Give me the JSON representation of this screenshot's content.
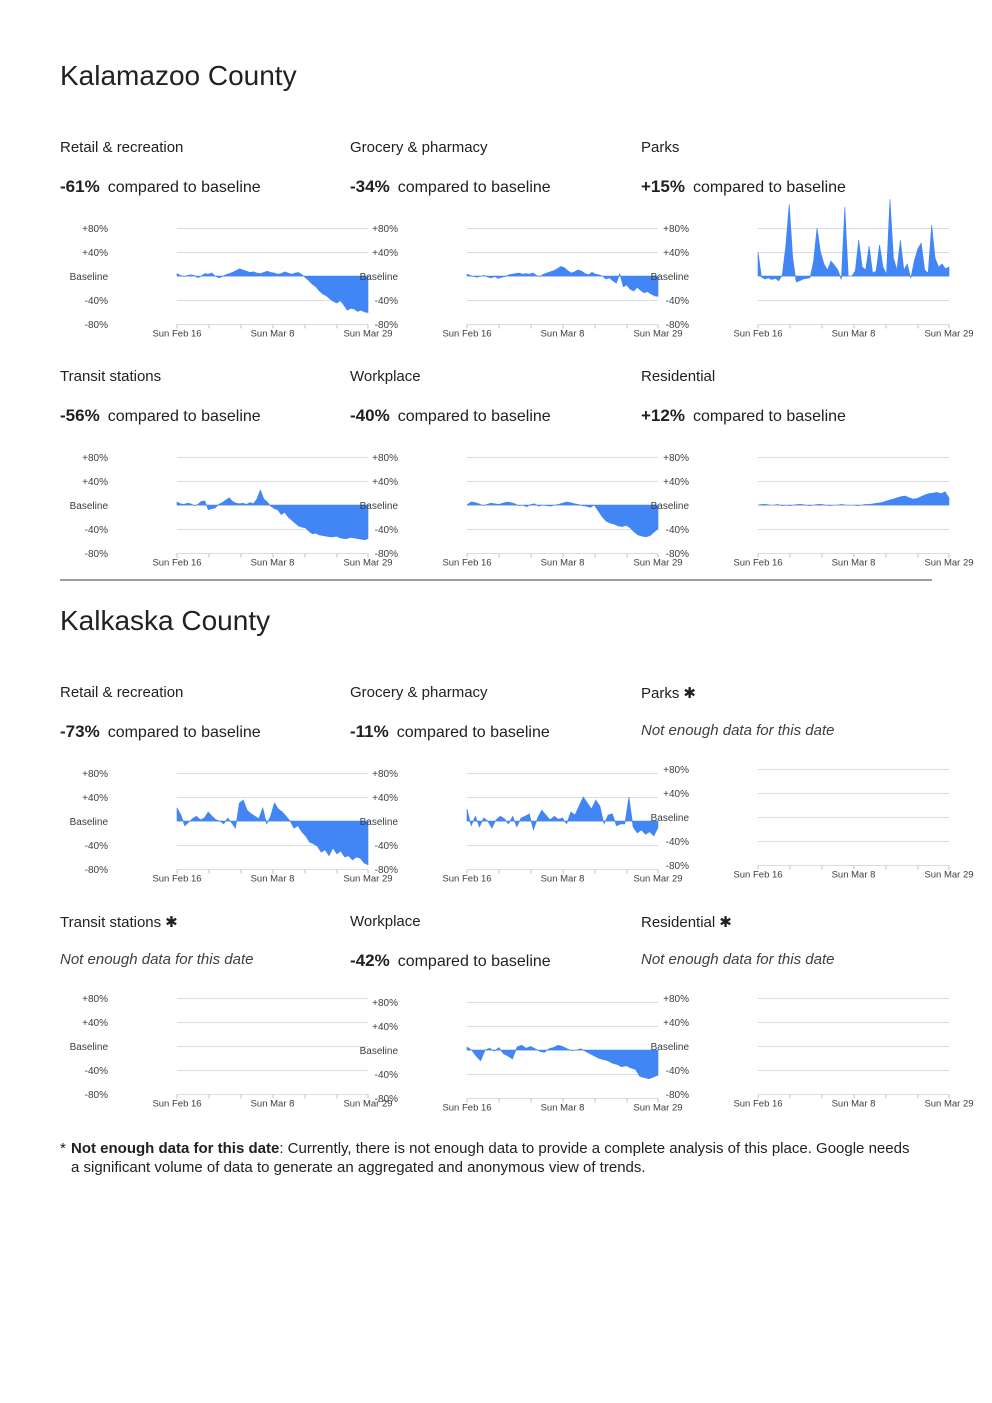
{
  "counties": [
    {
      "name": "Kalamazoo County",
      "panels": [
        {
          "title": "Retail & recreation",
          "headline": "-61%",
          "compare": "compared to baseline",
          "note": "",
          "asterisk": "",
          "values": [
            4,
            1,
            -1,
            1,
            2,
            1,
            -3,
            0,
            4,
            3,
            5,
            0,
            -3,
            -1,
            2,
            4,
            6,
            9,
            12,
            10,
            8,
            6,
            7,
            5,
            4,
            6,
            8,
            6,
            5,
            3,
            4,
            7,
            5,
            3,
            5,
            6,
            2,
            -3,
            -8,
            -14,
            -18,
            -25,
            -30,
            -33,
            -38,
            -42,
            -45,
            -41,
            -48,
            -57,
            -54,
            -55,
            -59,
            -57,
            -60,
            -61
          ]
        },
        {
          "title": "Grocery & pharmacy",
          "headline": "-34%",
          "compare": "compared to baseline",
          "note": "",
          "asterisk": "",
          "values": [
            3,
            1,
            -1,
            -2,
            0,
            1,
            -2,
            -3,
            -1,
            -4,
            -2,
            -1,
            2,
            3,
            4,
            5,
            3,
            4,
            3,
            5,
            1,
            -1,
            3,
            5,
            7,
            9,
            12,
            16,
            14,
            9,
            5,
            7,
            10,
            8,
            4,
            2,
            6,
            3,
            2,
            0,
            -5,
            -3,
            -8,
            -12,
            4,
            -18,
            -15,
            -22,
            -25,
            -19,
            -24,
            -28,
            -26,
            -30,
            -33,
            -34
          ]
        },
        {
          "title": "Parks",
          "headline": "+15%",
          "compare": "compared to baseline",
          "note": "",
          "asterisk": "",
          "values": [
            40,
            -2,
            -5,
            -3,
            -6,
            -4,
            -8,
            2,
            50,
            120,
            30,
            -10,
            -8,
            -5,
            -4,
            -3,
            25,
            80,
            40,
            20,
            10,
            25,
            18,
            10,
            -6,
            115,
            0,
            0,
            8,
            60,
            15,
            10,
            50,
            5,
            8,
            52,
            15,
            3,
            128,
            30,
            10,
            60,
            10,
            20,
            -4,
            25,
            45,
            55,
            10,
            5,
            85,
            30,
            15,
            20,
            12,
            15
          ]
        },
        {
          "title": "Transit stations",
          "headline": "-56%",
          "compare": "compared to baseline",
          "note": "",
          "asterisk": "",
          "values": [
            5,
            2,
            1,
            3,
            2,
            -1,
            1,
            6,
            7,
            -8,
            -6,
            -5,
            1,
            4,
            8,
            12,
            6,
            3,
            2,
            3,
            1,
            4,
            2,
            10,
            25,
            10,
            5,
            -2,
            -6,
            -8,
            -16,
            -12,
            -20,
            -25,
            -30,
            -35,
            -37,
            -38,
            -44,
            -48,
            -47,
            -50,
            -51,
            -52,
            -53,
            -53,
            -52,
            -55,
            -56,
            -56,
            -54,
            -55,
            -56,
            -57,
            -58,
            -56
          ]
        },
        {
          "title": "Workplace",
          "headline": "-40%",
          "compare": "compared to baseline",
          "note": "",
          "asterisk": "",
          "values": [
            0,
            5,
            4,
            2,
            -1,
            1,
            3,
            2,
            1,
            3,
            5,
            4,
            2,
            -1,
            0,
            -3,
            1,
            2,
            -2,
            0,
            -1,
            -2,
            0,
            1,
            3,
            5,
            4,
            2,
            1,
            -1,
            -2,
            -4,
            0,
            -10,
            -20,
            -27,
            -30,
            -32,
            -35,
            -36,
            -34,
            -38,
            -45,
            -50,
            -52,
            -53,
            -51,
            -45,
            -40
          ]
        },
        {
          "title": "Residential",
          "headline": "+12%",
          "compare": "compared to baseline",
          "note": "",
          "asterisk": "",
          "values": [
            0,
            1,
            1,
            0,
            0,
            1,
            -1,
            0,
            -1,
            0,
            1,
            1,
            0,
            -1,
            0,
            1,
            1,
            0,
            -1,
            0,
            0,
            1,
            0,
            0,
            0,
            -1,
            0,
            1,
            1,
            2,
            3,
            4,
            6,
            8,
            10,
            12,
            14,
            15,
            12,
            10,
            11,
            14,
            17,
            19,
            20,
            21,
            19,
            22,
            12
          ]
        }
      ]
    },
    {
      "name": "Kalkaska County",
      "panels": [
        {
          "title": "Retail & recreation",
          "headline": "-73%",
          "compare": "compared to baseline",
          "note": "",
          "asterisk": "",
          "values": [
            22,
            10,
            -8,
            -2,
            4,
            8,
            2,
            5,
            15,
            8,
            2,
            0,
            -5,
            5,
            -3,
            -12,
            30,
            35,
            18,
            12,
            8,
            4,
            22,
            -5,
            8,
            30,
            20,
            15,
            8,
            0,
            -12,
            -8,
            -18,
            -25,
            -35,
            -38,
            -42,
            -52,
            -48,
            -58,
            -45,
            -55,
            -50,
            -60,
            -58,
            -65,
            -60,
            -62,
            -70,
            -73
          ]
        },
        {
          "title": "Grocery & pharmacy",
          "headline": "-11%",
          "compare": "compared to baseline",
          "note": "",
          "asterisk": "",
          "values": [
            20,
            -8,
            8,
            -10,
            5,
            0,
            -12,
            2,
            8,
            4,
            -5,
            8,
            -10,
            5,
            8,
            12,
            -15,
            5,
            18,
            10,
            2,
            8,
            3,
            5,
            -5,
            15,
            10,
            25,
            40,
            30,
            20,
            35,
            25,
            -5,
            10,
            12,
            -8,
            -5,
            -5,
            40,
            -10,
            -20,
            -15,
            -22,
            -18,
            -25,
            -11
          ]
        },
        {
          "title": "Parks",
          "headline": "",
          "compare": "",
          "note": "Not enough data for this date",
          "asterisk": "✱",
          "values": []
        },
        {
          "title": "Transit stations",
          "headline": "",
          "compare": "",
          "note": "Not enough data for this date",
          "asterisk": "✱",
          "values": []
        },
        {
          "title": "Workplace",
          "headline": "-42%",
          "compare": "compared to baseline",
          "note": "",
          "asterisk": "",
          "values": [
            5,
            0,
            -10,
            -18,
            0,
            3,
            -2,
            4,
            -6,
            -10,
            -15,
            5,
            8,
            3,
            6,
            2,
            -2,
            -4,
            2,
            4,
            8,
            6,
            2,
            -1,
            0,
            2,
            -2,
            -6,
            -10,
            -14,
            -16,
            -18,
            -22,
            -24,
            -28,
            -26,
            -30,
            -32,
            -44,
            -46,
            -48,
            -45,
            -42
          ]
        },
        {
          "title": "Residential",
          "headline": "",
          "compare": "",
          "note": "Not enough data for this date",
          "asterisk": "✱",
          "values": []
        }
      ]
    }
  ],
  "axis": {
    "y_ticks": [
      "+80%",
      "+40%",
      "Baseline",
      "-40%",
      "-80%"
    ],
    "y_values": [
      80,
      40,
      0,
      -40,
      -80
    ],
    "x_ticks": [
      "Sun Feb 16",
      "Sun Mar 8",
      "Sun Mar 29"
    ]
  },
  "colors": {
    "fill": "#4285f4",
    "grid": "#dadce0",
    "text": "#3c4043"
  },
  "footnote": {
    "marker": "*",
    "bold": "Not enough data for this date",
    "text": ": Currently, there is not enough data to provide a complete analysis of this place. Google needs a significant volume of data to generate an aggregated and anonymous view of trends."
  },
  "chart_data": [
    {
      "type": "area",
      "title": "Kalamazoo County — Retail & recreation",
      "ylim": [
        -80,
        80
      ],
      "x": [
        "Sun Feb 16",
        "Sun Mar 8",
        "Sun Mar 29"
      ],
      "series": [
        {
          "name": "Retail & recreation",
          "last_value": -61
        }
      ]
    },
    {
      "type": "area",
      "title": "Kalamazoo County — Grocery & pharmacy",
      "ylim": [
        -80,
        80
      ],
      "series": [
        {
          "name": "Grocery & pharmacy",
          "last_value": -34
        }
      ]
    },
    {
      "type": "area",
      "title": "Kalamazoo County — Parks",
      "ylim": [
        -80,
        80
      ],
      "series": [
        {
          "name": "Parks",
          "last_value": 15
        }
      ]
    },
    {
      "type": "area",
      "title": "Kalamazoo County — Transit stations",
      "ylim": [
        -80,
        80
      ],
      "series": [
        {
          "name": "Transit stations",
          "last_value": -56
        }
      ]
    },
    {
      "type": "area",
      "title": "Kalamazoo County — Workplace",
      "ylim": [
        -80,
        80
      ],
      "series": [
        {
          "name": "Workplace",
          "last_value": -40
        }
      ]
    },
    {
      "type": "area",
      "title": "Kalamazoo County — Residential",
      "ylim": [
        -80,
        80
      ],
      "series": [
        {
          "name": "Residential",
          "last_value": 12
        }
      ]
    },
    {
      "type": "area",
      "title": "Kalkaska County — Retail & recreation",
      "ylim": [
        -80,
        80
      ],
      "series": [
        {
          "name": "Retail & recreation",
          "last_value": -73
        }
      ]
    },
    {
      "type": "area",
      "title": "Kalkaska County — Grocery & pharmacy",
      "ylim": [
        -80,
        80
      ],
      "series": [
        {
          "name": "Grocery & pharmacy",
          "last_value": -11
        }
      ]
    },
    {
      "type": "area",
      "title": "Kalkaska County — Workplace",
      "ylim": [
        -80,
        80
      ],
      "series": [
        {
          "name": "Workplace",
          "last_value": -42
        }
      ]
    }
  ]
}
